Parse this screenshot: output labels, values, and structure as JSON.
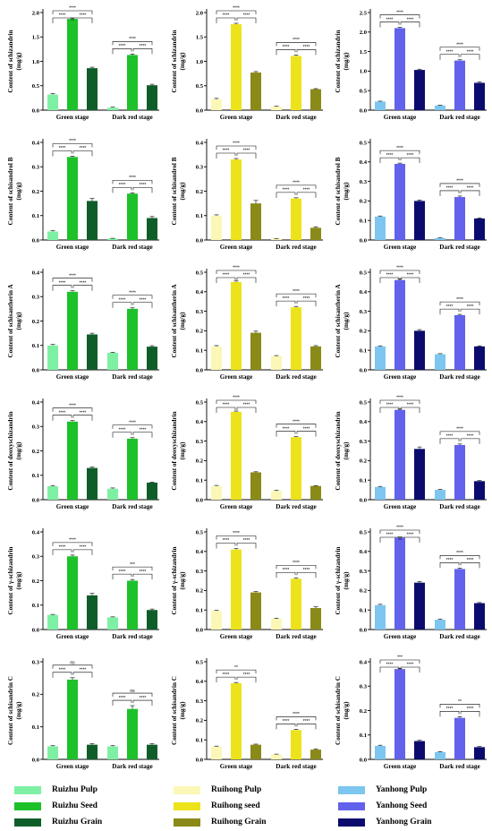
{
  "legend": {
    "items": [
      {
        "label": "Ruizhu Pulp",
        "color": "#7ef0a4"
      },
      {
        "label": "Ruizhu Seed",
        "color": "#1ec12a"
      },
      {
        "label": "Ruizhu Grain",
        "color": "#0f5e2a"
      },
      {
        "label": "Ruihong Pulp",
        "color": "#fbf7b6"
      },
      {
        "label": "Ruihong seed",
        "color": "#ece31a"
      },
      {
        "label": "Ruihong Grain",
        "color": "#8a8a18"
      },
      {
        "label": "Yanhong Pulp",
        "color": "#7cc6ef"
      },
      {
        "label": "Yanhong Seed",
        "color": "#6262ec"
      },
      {
        "label": "Yanhong Grain",
        "color": "#0b0b6e"
      }
    ]
  },
  "chart_data": [
    {
      "type": "bar",
      "ylabel": "Content of schizandrin\n(mg/g)",
      "categories": [
        "Green stage",
        "Dark red stage"
      ],
      "ylim": [
        0,
        2.0
      ],
      "yticks": [
        "0.0",
        "0.5",
        "1.0",
        "1.5",
        "2.0"
      ],
      "colors": [
        "#7ef0a4",
        "#1ec12a",
        "#0f5e2a"
      ],
      "series_values": [
        [
          0.32,
          0.05
        ],
        [
          1.87,
          1.13
        ],
        [
          0.86,
          0.51
        ]
      ],
      "errors": [
        [
          0.02,
          0.01
        ],
        [
          0.02,
          0.02
        ],
        [
          0.02,
          0.02
        ]
      ],
      "sig": [
        [
          "****",
          "****",
          "****"
        ],
        [
          "****",
          "****",
          "****"
        ]
      ]
    },
    {
      "type": "bar",
      "ylabel": "Content of schizandrin\n(mg/g)",
      "categories": [
        "Green stage",
        "Dark red stage"
      ],
      "ylim": [
        0,
        2.0
      ],
      "yticks": [
        "0.0",
        "0.5",
        "1.0",
        "1.5",
        "2.0"
      ],
      "colors": [
        "#fbf7b6",
        "#ece31a",
        "#8a8a18"
      ],
      "series_values": [
        [
          0.22,
          0.07
        ],
        [
          1.76,
          1.11
        ],
        [
          0.77,
          0.43
        ]
      ],
      "errors": [
        [
          0.02,
          0.01
        ],
        [
          0.02,
          0.02
        ],
        [
          0.02,
          0.01
        ]
      ],
      "sig": [
        [
          "****",
          "****",
          "****"
        ],
        [
          "****",
          "****",
          "****"
        ]
      ]
    },
    {
      "type": "bar",
      "ylabel": "Content of schizandrin\n(mg/g)",
      "categories": [
        "Green stage",
        "Dark red stage"
      ],
      "ylim": [
        0,
        2.5
      ],
      "yticks": [
        "0.0",
        "0.5",
        "1.0",
        "1.5",
        "2.0",
        "2.5"
      ],
      "colors": [
        "#7cc6ef",
        "#6262ec",
        "#0b0b6e"
      ],
      "series_values": [
        [
          0.22,
          0.12
        ],
        [
          2.1,
          1.27
        ],
        [
          1.03,
          0.7
        ]
      ],
      "errors": [
        [
          0.01,
          0.01
        ],
        [
          0.02,
          0.02
        ],
        [
          0.02,
          0.02
        ]
      ],
      "sig": [
        [
          "****",
          "****",
          "****"
        ],
        [
          "****",
          "****",
          "****"
        ]
      ]
    },
    {
      "type": "bar",
      "ylabel": "Content of schisandrol B\n(mg/g)",
      "categories": [
        "Green stage",
        "Dark red stage"
      ],
      "ylim": [
        0,
        0.4
      ],
      "yticks": [
        "0.0",
        "0.1",
        "0.2",
        "0.3",
        "0.4"
      ],
      "colors": [
        "#7ef0a4",
        "#1ec12a",
        "#0f5e2a"
      ],
      "series_values": [
        [
          0.035,
          0.006
        ],
        [
          0.34,
          0.19
        ],
        [
          0.16,
          0.09
        ]
      ],
      "errors": [
        [
          0.003,
          0.001
        ],
        [
          0.003,
          0.003
        ],
        [
          0.01,
          0.006
        ]
      ],
      "sig": [
        [
          "****",
          "****",
          "****"
        ],
        [
          "****",
          "****",
          "****"
        ]
      ]
    },
    {
      "type": "bar",
      "ylabel": "Content of schisandrol B\n(mg/g)",
      "categories": [
        "Green stage",
        "Dark red stage"
      ],
      "ylim": [
        0,
        0.4
      ],
      "yticks": [
        "0.0",
        "0.1",
        "0.2",
        "0.3",
        "0.4"
      ],
      "colors": [
        "#fbf7b6",
        "#ece31a",
        "#8a8a18"
      ],
      "series_values": [
        [
          0.1,
          0.005
        ],
        [
          0.33,
          0.17
        ],
        [
          0.15,
          0.05
        ]
      ],
      "errors": [
        [
          0.003,
          0.001
        ],
        [
          0.004,
          0.003
        ],
        [
          0.012,
          0.004
        ]
      ],
      "sig": [
        [
          "****",
          "****",
          "****"
        ],
        [
          "****",
          "****",
          "****"
        ]
      ]
    },
    {
      "type": "bar",
      "ylabel": "Content of schisandrol B\n(mg/g)",
      "categories": [
        "Green stage",
        "Dark red stage"
      ],
      "ylim": [
        0,
        0.5
      ],
      "yticks": [
        "0.0",
        "0.1",
        "0.2",
        "0.3",
        "0.4",
        "0.5"
      ],
      "colors": [
        "#7cc6ef",
        "#6262ec",
        "#0b0b6e"
      ],
      "series_values": [
        [
          0.12,
          0.01
        ],
        [
          0.39,
          0.22
        ],
        [
          0.2,
          0.11
        ]
      ],
      "errors": [
        [
          0.003,
          0.001
        ],
        [
          0.004,
          0.005
        ],
        [
          0.005,
          0.003
        ]
      ],
      "sig": [
        [
          "****",
          "****",
          "****"
        ],
        [
          "****",
          "****",
          "****"
        ]
      ]
    },
    {
      "type": "bar",
      "ylabel": "Content of schisantherin A\n(mg/g)",
      "categories": [
        "Green stage",
        "Dark red stage"
      ],
      "ylim": [
        0,
        0.4
      ],
      "yticks": [
        "0.0",
        "0.1",
        "0.2",
        "0.3",
        "0.4"
      ],
      "colors": [
        "#7ef0a4",
        "#1ec12a",
        "#0f5e2a"
      ],
      "series_values": [
        [
          0.1,
          0.07
        ],
        [
          0.32,
          0.25
        ],
        [
          0.145,
          0.095
        ]
      ],
      "errors": [
        [
          0.004,
          0.002
        ],
        [
          0.004,
          0.004
        ],
        [
          0.005,
          0.004
        ]
      ],
      "sig": [
        [
          "****",
          "****",
          "****"
        ],
        [
          "****",
          "****",
          "****"
        ]
      ]
    },
    {
      "type": "bar",
      "ylabel": "Content of schisantherin A\n(mg/g)",
      "categories": [
        "Green stage",
        "Dark red stage"
      ],
      "ylim": [
        0,
        0.5
      ],
      "yticks": [
        "0.0",
        "0.1",
        "0.2",
        "0.3",
        "0.4",
        "0.5"
      ],
      "colors": [
        "#fbf7b6",
        "#ece31a",
        "#8a8a18"
      ],
      "series_values": [
        [
          0.12,
          0.07
        ],
        [
          0.45,
          0.32
        ],
        [
          0.19,
          0.12
        ]
      ],
      "errors": [
        [
          0.004,
          0.003
        ],
        [
          0.005,
          0.005
        ],
        [
          0.008,
          0.004
        ]
      ],
      "sig": [
        [
          "****",
          "****",
          "****"
        ],
        [
          "****",
          "****",
          "****"
        ]
      ]
    },
    {
      "type": "bar",
      "ylabel": "Content of schisantherin A\n(mg/g)",
      "categories": [
        "Green stage",
        "Dark red stage"
      ],
      "ylim": [
        0,
        0.5
      ],
      "yticks": [
        "0.0",
        "0.1",
        "0.2",
        "0.3",
        "0.4",
        "0.5"
      ],
      "colors": [
        "#7cc6ef",
        "#6262ec",
        "#0b0b6e"
      ],
      "series_values": [
        [
          0.12,
          0.08
        ],
        [
          0.46,
          0.28
        ],
        [
          0.2,
          0.12
        ]
      ],
      "errors": [
        [
          0.003,
          0.003
        ],
        [
          0.005,
          0.004
        ],
        [
          0.006,
          0.003
        ]
      ],
      "sig": [
        [
          "****",
          "****",
          "****"
        ],
        [
          "****",
          "****",
          "****"
        ]
      ]
    },
    {
      "type": "bar",
      "ylabel": "Content of deoxyschizandrin\n(mg/g)",
      "categories": [
        "Green stage",
        "Dark red stage"
      ],
      "ylim": [
        0,
        0.4
      ],
      "yticks": [
        "0.0",
        "0.1",
        "0.2",
        "0.3",
        "0.4"
      ],
      "colors": [
        "#7ef0a4",
        "#1ec12a",
        "#0f5e2a"
      ],
      "series_values": [
        [
          0.055,
          0.045
        ],
        [
          0.32,
          0.25
        ],
        [
          0.13,
          0.07
        ]
      ],
      "errors": [
        [
          0.003,
          0.003
        ],
        [
          0.004,
          0.004
        ],
        [
          0.004,
          0.002
        ]
      ],
      "sig": [
        [
          "****",
          "****",
          "****"
        ],
        [
          "****",
          "****",
          "****"
        ]
      ]
    },
    {
      "type": "bar",
      "ylabel": "Content of deoxyschizandrin\n(mg/g)",
      "categories": [
        "Green stage",
        "Dark red stage"
      ],
      "ylim": [
        0,
        0.5
      ],
      "yticks": [
        "0.0",
        "0.1",
        "0.2",
        "0.3",
        "0.4",
        "0.5"
      ],
      "colors": [
        "#fbf7b6",
        "#ece31a",
        "#8a8a18"
      ],
      "series_values": [
        [
          0.07,
          0.045
        ],
        [
          0.45,
          0.32
        ],
        [
          0.14,
          0.07
        ]
      ],
      "errors": [
        [
          0.003,
          0.003
        ],
        [
          0.004,
          0.003
        ],
        [
          0.003,
          0.002
        ]
      ],
      "sig": [
        [
          "****",
          "****",
          "****"
        ],
        [
          "****",
          "****",
          "****"
        ]
      ]
    },
    {
      "type": "bar",
      "ylabel": "Content of deoxyschizandrin\n(mg/g)",
      "categories": [
        "Green stage",
        "Dark red stage"
      ],
      "ylim": [
        0,
        0.5
      ],
      "yticks": [
        "0.0",
        "0.1",
        "0.2",
        "0.3",
        "0.4",
        "0.5"
      ],
      "colors": [
        "#7cc6ef",
        "#6262ec",
        "#0b0b6e"
      ],
      "series_values": [
        [
          0.065,
          0.05
        ],
        [
          0.46,
          0.28
        ],
        [
          0.26,
          0.095
        ]
      ],
      "errors": [
        [
          0.003,
          0.003
        ],
        [
          0.004,
          0.005
        ],
        [
          0.01,
          0.003
        ]
      ],
      "sig": [
        [
          "****",
          "****",
          "****"
        ],
        [
          "****",
          "****",
          "****"
        ]
      ]
    },
    {
      "type": "bar",
      "ylabel": "Content of γ-schizandrin\n(mg/g)",
      "categories": [
        "Green stage",
        "Dark red stage"
      ],
      "ylim": [
        0,
        0.4
      ],
      "yticks": [
        "0.0",
        "0.1",
        "0.2",
        "0.3",
        "0.4"
      ],
      "colors": [
        "#7ef0a4",
        "#1ec12a",
        "#0f5e2a"
      ],
      "series_values": [
        [
          0.06,
          0.05
        ],
        [
          0.3,
          0.2
        ],
        [
          0.14,
          0.08
        ]
      ],
      "errors": [
        [
          0.002,
          0.002
        ],
        [
          0.005,
          0.005
        ],
        [
          0.008,
          0.004
        ]
      ],
      "sig": [
        [
          "****",
          "****",
          "****"
        ],
        [
          "****",
          "****",
          "***"
        ]
      ]
    },
    {
      "type": "bar",
      "ylabel": "Content of γ-schizandrin\n(mg/g)",
      "categories": [
        "Green stage",
        "Dark red stage"
      ],
      "ylim": [
        0,
        0.5
      ],
      "yticks": [
        "0.0",
        "0.1",
        "0.2",
        "0.3",
        "0.4",
        "0.5"
      ],
      "colors": [
        "#fbf7b6",
        "#ece31a",
        "#8a8a18"
      ],
      "series_values": [
        [
          0.095,
          0.055
        ],
        [
          0.41,
          0.26
        ],
        [
          0.19,
          0.11
        ]
      ],
      "errors": [
        [
          0.003,
          0.003
        ],
        [
          0.005,
          0.005
        ],
        [
          0.004,
          0.006
        ]
      ],
      "sig": [
        [
          "****",
          "****",
          "****"
        ],
        [
          "****",
          "****",
          "****"
        ]
      ]
    },
    {
      "type": "bar",
      "ylabel": "Content of γ-schizandrin\n(mg/g)",
      "categories": [
        "Green stage",
        "Dark red stage"
      ],
      "ylim": [
        0,
        0.5
      ],
      "yticks": [
        "0.0",
        "0.1",
        "0.2",
        "0.3",
        "0.4",
        "0.5"
      ],
      "colors": [
        "#7cc6ef",
        "#6262ec",
        "#0b0b6e"
      ],
      "series_values": [
        [
          0.125,
          0.05
        ],
        [
          0.47,
          0.31
        ],
        [
          0.24,
          0.135
        ]
      ],
      "errors": [
        [
          0.004,
          0.004
        ],
        [
          0.004,
          0.005
        ],
        [
          0.006,
          0.003
        ]
      ],
      "sig": [
        [
          "****",
          "****",
          "****"
        ],
        [
          "****",
          "****",
          "****"
        ]
      ]
    },
    {
      "type": "bar",
      "ylabel": "Content of schisandrin C\n(mg/g)",
      "categories": [
        "Green stage",
        "Dark red stage"
      ],
      "ylim": [
        0,
        0.3
      ],
      "yticks": [
        "0.0",
        "0.1",
        "0.2",
        "0.3"
      ],
      "colors": [
        "#7ef0a4",
        "#1ec12a",
        "#0f5e2a"
      ],
      "series_values": [
        [
          0.04,
          0.04
        ],
        [
          0.245,
          0.155
        ],
        [
          0.045,
          0.045
        ]
      ],
      "errors": [
        [
          0.002,
          0.002
        ],
        [
          0.006,
          0.01
        ],
        [
          0.003,
          0.003
        ]
      ],
      "sig": [
        [
          "****",
          "****",
          "ns"
        ],
        [
          "****",
          "****",
          "ns"
        ]
      ]
    },
    {
      "type": "bar",
      "ylabel": "Content of schisandrin C\n(mg/g)",
      "categories": [
        "Green stage",
        "Dark red stage"
      ],
      "ylim": [
        0,
        0.5
      ],
      "yticks": [
        "0.0",
        "0.1",
        "0.2",
        "0.3",
        "0.4",
        "0.5"
      ],
      "colors": [
        "#fbf7b6",
        "#ece31a",
        "#8a8a18"
      ],
      "series_values": [
        [
          0.065,
          0.025
        ],
        [
          0.39,
          0.15
        ],
        [
          0.075,
          0.05
        ]
      ],
      "errors": [
        [
          0.003,
          0.002
        ],
        [
          0.004,
          0.004
        ],
        [
          0.003,
          0.003
        ]
      ],
      "sig": [
        [
          "****",
          "****",
          "**"
        ],
        [
          "****",
          "****",
          "****"
        ]
      ]
    },
    {
      "type": "bar",
      "ylabel": "Content of schisandrin C\n(mg/g)",
      "categories": [
        "Green stage",
        "Dark red stage"
      ],
      "ylim": [
        0,
        0.4
      ],
      "yticks": [
        "0.0",
        "0.1",
        "0.2",
        "0.3",
        "0.4"
      ],
      "colors": [
        "#7cc6ef",
        "#6262ec",
        "#0b0b6e"
      ],
      "series_values": [
        [
          0.055,
          0.03
        ],
        [
          0.37,
          0.17
        ],
        [
          0.075,
          0.05
        ]
      ],
      "errors": [
        [
          0.003,
          0.002
        ],
        [
          0.003,
          0.005
        ],
        [
          0.003,
          0.003
        ]
      ],
      "sig": [
        [
          "****",
          "****",
          "***"
        ],
        [
          "****",
          "****",
          "**"
        ]
      ]
    }
  ]
}
